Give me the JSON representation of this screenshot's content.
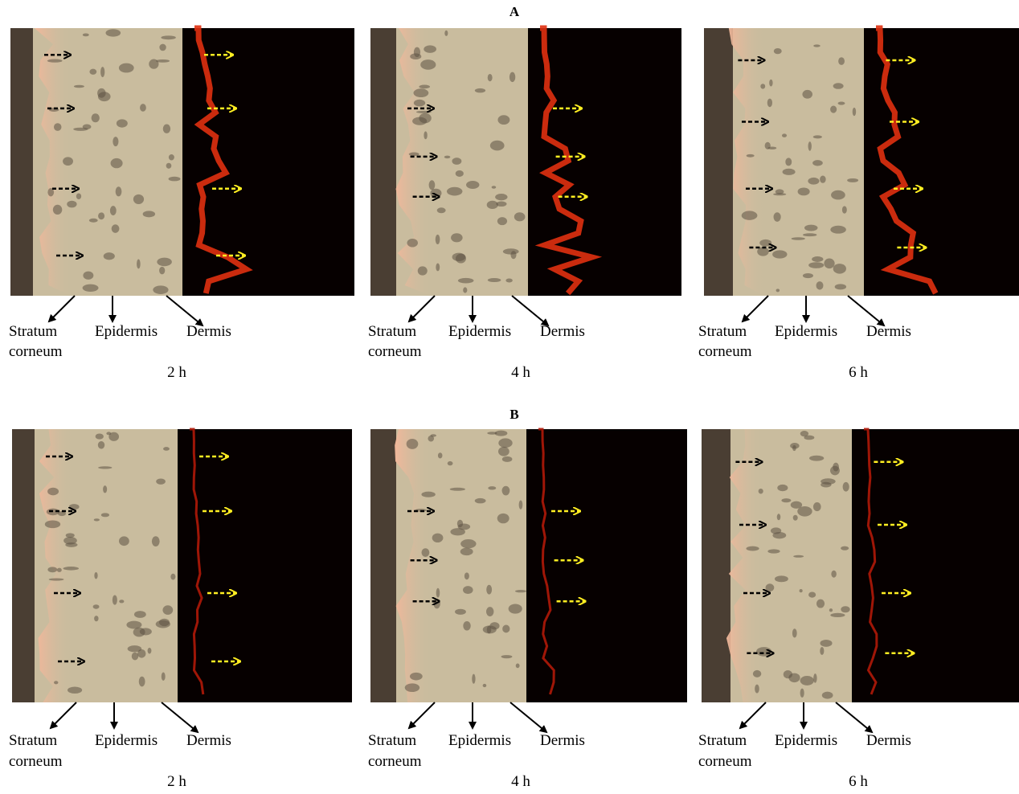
{
  "panels": [
    {
      "label": "A",
      "images": [
        {
          "stratum_corneum": [
            "Stratum",
            "corneum"
          ],
          "epidermis": "Epidermis",
          "dermis": "Dermis",
          "time": "2 h"
        },
        {
          "stratum_corneum": [
            "Stratum",
            "corneum"
          ],
          "epidermis": "Epidermis",
          "dermis": "Dermis",
          "time": "4 h"
        },
        {
          "stratum_corneum": [
            "Stratum",
            "corneum"
          ],
          "epidermis": "Epidermis",
          "dermis": "Dermis",
          "time": "6 h"
        }
      ]
    },
    {
      "label": "B",
      "images": [
        {
          "stratum_corneum": [
            "Stratum",
            "corneum"
          ],
          "epidermis": "Epidermis",
          "dermis": "Dermis",
          "time": "2 h"
        },
        {
          "stratum_corneum": [
            "Stratum",
            "corneum"
          ],
          "epidermis": "Epidermis",
          "dermis": "Dermis",
          "time": "4 h"
        },
        {
          "stratum_corneum": [
            "Stratum",
            "corneum"
          ],
          "epidermis": "Epidermis",
          "dermis": "Dermis",
          "time": "6 h"
        }
      ]
    }
  ]
}
